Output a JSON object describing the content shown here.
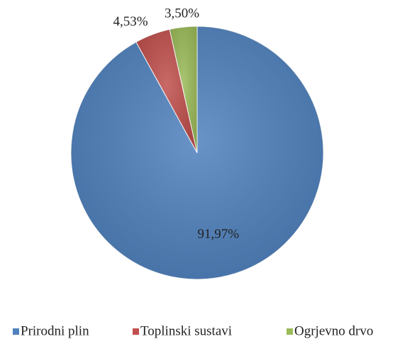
{
  "chart_data": {
    "type": "pie",
    "categories": [
      "Prirodni plin",
      "Toplinski sustavi",
      "Ogrjevno drvo"
    ],
    "values": [
      91.97,
      4.53,
      3.5
    ],
    "value_labels": [
      "91,97%",
      "4,53%",
      "3,50%"
    ],
    "colors": [
      "#4f81bd",
      "#c0504d",
      "#9bbb59"
    ],
    "legend": "bottom"
  }
}
